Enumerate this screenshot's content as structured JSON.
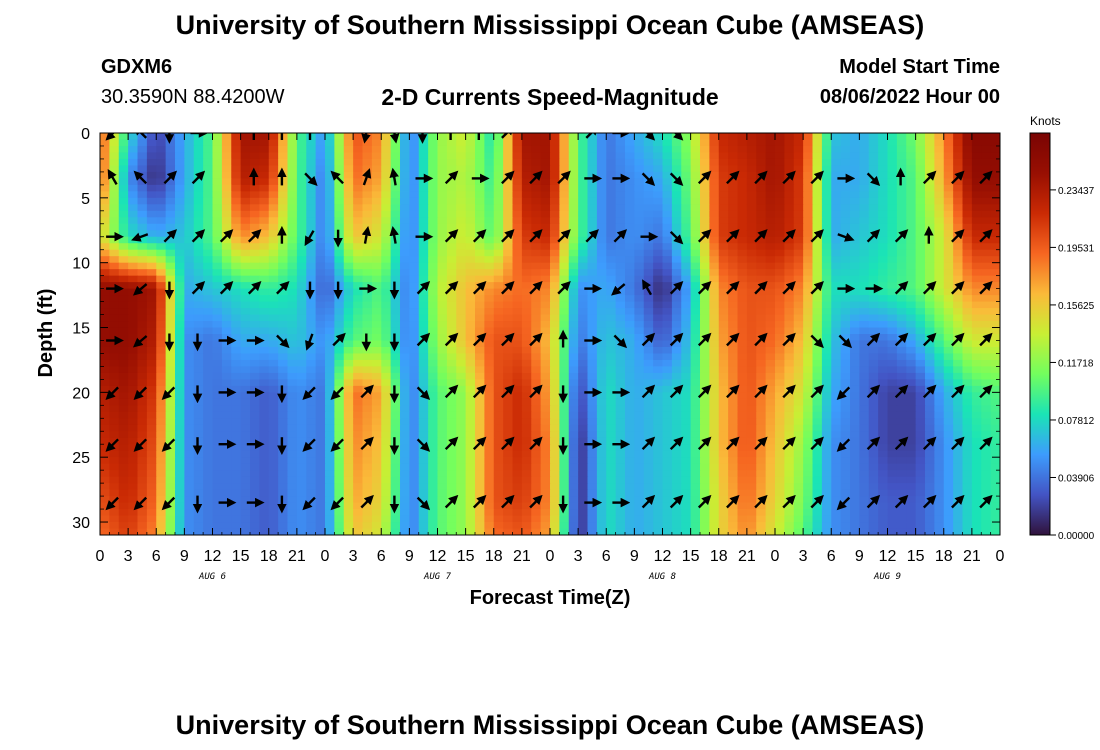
{
  "page": {
    "title_top": "University of Southern Mississippi Ocean Cube (AMSEAS)",
    "title_bottom": "University of Southern Mississippi Ocean Cube (AMSEAS)",
    "station_id": "GDXM6",
    "station_coords": "30.3590N  88.4200W",
    "plot_title": "2-D Currents Speed-Magnitude",
    "model_start_label": "Model Start Time",
    "model_start_value": "08/06/2022 Hour 00"
  },
  "chart_data": {
    "type": "heatmap",
    "title": "2-D Currents Speed-Magnitude",
    "xlabel": "Forecast Time(Z)",
    "ylabel": "Depth (ft)",
    "x_range_hours": [
      0,
      96
    ],
    "ylim": [
      0,
      31
    ],
    "y_ticks": [
      0,
      5,
      10,
      15,
      20,
      25,
      30
    ],
    "x_tick_labels": [
      "0",
      "3",
      "6",
      "9",
      "12",
      "15",
      "18",
      "21",
      "0",
      "3",
      "6",
      "9",
      "12",
      "15",
      "18",
      "21",
      "0",
      "3",
      "6",
      "9",
      "12",
      "15",
      "18",
      "21",
      "0",
      "3",
      "6",
      "9",
      "12",
      "15",
      "18",
      "21",
      "0"
    ],
    "day_labels": [
      {
        "text": "AUG 6",
        "hour": 12
      },
      {
        "text": "AUG 7",
        "hour": 36
      },
      {
        "text": "AUG 8",
        "hour": 60
      },
      {
        "text": "AUG 9",
        "hour": 84
      }
    ],
    "colorbar": {
      "unit_label": "Knots",
      "range": [
        0.0,
        0.273
      ],
      "tick_labels": [
        "0.23437",
        "0.19531",
        "0.15625",
        "0.11718",
        "0.07812",
        "0.03906",
        "0.00000"
      ],
      "tick_values": [
        0.23437,
        0.19531,
        0.15625,
        0.11718,
        0.07812,
        0.03906,
        0.0
      ]
    },
    "speed_knots_approx": {
      "columns_hours": [
        0,
        3,
        6,
        9,
        12,
        15,
        18,
        21,
        24,
        27,
        30,
        33,
        36,
        39,
        42,
        45,
        48,
        51,
        54,
        57,
        60,
        63,
        66,
        69,
        72,
        75,
        78,
        81,
        84,
        87,
        90,
        93,
        96
      ],
      "depths_ft": [
        0,
        3.5,
        8,
        12,
        16,
        20,
        24,
        28.5,
        31
      ],
      "rows": [
        [
          0.2,
          0.08,
          0.02,
          0.06,
          0.1,
          0.24,
          0.24,
          0.1,
          0.05,
          0.2,
          0.18,
          0.04,
          0.12,
          0.14,
          0.08,
          0.24,
          0.24,
          0.1,
          0.04,
          0.06,
          0.08,
          0.12,
          0.22,
          0.23,
          0.24,
          0.22,
          0.07,
          0.06,
          0.08,
          0.11,
          0.18,
          0.26,
          0.26
        ],
        [
          0.2,
          0.05,
          0.01,
          0.06,
          0.1,
          0.23,
          0.22,
          0.1,
          0.04,
          0.19,
          0.17,
          0.04,
          0.12,
          0.13,
          0.09,
          0.23,
          0.24,
          0.1,
          0.04,
          0.05,
          0.06,
          0.11,
          0.21,
          0.22,
          0.24,
          0.21,
          0.06,
          0.06,
          0.08,
          0.1,
          0.17,
          0.25,
          0.25
        ],
        [
          0.15,
          0.08,
          0.06,
          0.07,
          0.1,
          0.18,
          0.16,
          0.1,
          0.04,
          0.16,
          0.14,
          0.04,
          0.12,
          0.14,
          0.1,
          0.21,
          0.22,
          0.1,
          0.04,
          0.05,
          0.04,
          0.1,
          0.21,
          0.22,
          0.23,
          0.21,
          0.06,
          0.07,
          0.08,
          0.1,
          0.14,
          0.22,
          0.22
        ],
        [
          0.25,
          0.25,
          0.24,
          0.06,
          0.07,
          0.08,
          0.09,
          0.08,
          0.03,
          0.08,
          0.1,
          0.04,
          0.13,
          0.16,
          0.18,
          0.19,
          0.18,
          0.05,
          0.06,
          0.04,
          0.01,
          0.06,
          0.18,
          0.2,
          0.2,
          0.18,
          0.08,
          0.08,
          0.09,
          0.1,
          0.14,
          0.18,
          0.18
        ],
        [
          0.25,
          0.25,
          0.23,
          0.05,
          0.04,
          0.06,
          0.06,
          0.07,
          0.05,
          0.1,
          0.11,
          0.04,
          0.12,
          0.16,
          0.2,
          0.2,
          0.16,
          0.04,
          0.07,
          0.06,
          0.03,
          0.07,
          0.17,
          0.2,
          0.19,
          0.16,
          0.07,
          0.04,
          0.04,
          0.06,
          0.1,
          0.14,
          0.14
        ],
        [
          0.23,
          0.24,
          0.21,
          0.05,
          0.04,
          0.04,
          0.03,
          0.05,
          0.04,
          0.19,
          0.17,
          0.04,
          0.1,
          0.12,
          0.2,
          0.22,
          0.17,
          0.02,
          0.08,
          0.06,
          0.07,
          0.08,
          0.16,
          0.2,
          0.17,
          0.14,
          0.06,
          0.04,
          0.02,
          0.02,
          0.06,
          0.09,
          0.1
        ],
        [
          0.22,
          0.23,
          0.2,
          0.05,
          0.04,
          0.04,
          0.03,
          0.05,
          0.04,
          0.18,
          0.16,
          0.04,
          0.1,
          0.12,
          0.2,
          0.22,
          0.18,
          0.01,
          0.08,
          0.06,
          0.07,
          0.08,
          0.16,
          0.2,
          0.16,
          0.12,
          0.05,
          0.04,
          0.02,
          0.02,
          0.05,
          0.08,
          0.09
        ],
        [
          0.2,
          0.22,
          0.19,
          0.05,
          0.04,
          0.04,
          0.03,
          0.05,
          0.04,
          0.17,
          0.15,
          0.04,
          0.1,
          0.12,
          0.2,
          0.21,
          0.18,
          0.01,
          0.08,
          0.06,
          0.07,
          0.08,
          0.15,
          0.19,
          0.15,
          0.11,
          0.05,
          0.04,
          0.03,
          0.03,
          0.05,
          0.08,
          0.09
        ],
        [
          0.19,
          0.21,
          0.18,
          0.05,
          0.04,
          0.04,
          0.03,
          0.05,
          0.04,
          0.16,
          0.14,
          0.04,
          0.1,
          0.12,
          0.19,
          0.2,
          0.17,
          0.01,
          0.08,
          0.06,
          0.07,
          0.08,
          0.15,
          0.18,
          0.14,
          0.1,
          0.05,
          0.04,
          0.03,
          0.03,
          0.05,
          0.08,
          0.09
        ]
      ]
    },
    "vectors": {
      "columns_hours": [
        3,
        6,
        9,
        12,
        15,
        18,
        21,
        24,
        27,
        30,
        33,
        36,
        39,
        42,
        45,
        48,
        51,
        54,
        57,
        60,
        63,
        66,
        69,
        72,
        75,
        78,
        81,
        84,
        87,
        90,
        93,
        96
      ],
      "depths_ft": [
        0,
        3.5,
        8,
        12,
        16,
        20,
        24,
        28.5
      ],
      "direction_deg_rows": [
        [
          225,
          315,
          180,
          90,
          null,
          0,
          0,
          0,
          null,
          190,
          170,
          180,
          0,
          0,
          45,
          null,
          null,
          45,
          90,
          135,
          135,
          null,
          null,
          null,
          null,
          null,
          null,
          null,
          null,
          null,
          null,
          null
        ],
        [
          330,
          315,
          45,
          45,
          null,
          0,
          0,
          135,
          315,
          20,
          350,
          90,
          45,
          90,
          45,
          45,
          45,
          90,
          90,
          135,
          135,
          45,
          45,
          45,
          45,
          45,
          90,
          135,
          0,
          45,
          45,
          45
        ],
        [
          90,
          250,
          45,
          45,
          45,
          45,
          0,
          210,
          180,
          10,
          350,
          90,
          45,
          45,
          45,
          45,
          45,
          45,
          45,
          90,
          135,
          45,
          45,
          45,
          45,
          45,
          110,
          45,
          45,
          0,
          45,
          45
        ],
        [
          90,
          230,
          180,
          45,
          45,
          45,
          45,
          180,
          180,
          90,
          180,
          45,
          45,
          45,
          45,
          45,
          45,
          90,
          230,
          330,
          45,
          45,
          45,
          45,
          45,
          45,
          90,
          90,
          45,
          45,
          45,
          45
        ],
        [
          90,
          230,
          180,
          180,
          90,
          90,
          135,
          200,
          45,
          180,
          180,
          45,
          45,
          45,
          45,
          45,
          0,
          90,
          135,
          45,
          45,
          45,
          45,
          45,
          45,
          135,
          135,
          45,
          45,
          45,
          45,
          45
        ],
        [
          225,
          225,
          225,
          180,
          90,
          90,
          180,
          225,
          225,
          45,
          180,
          135,
          45,
          45,
          45,
          45,
          180,
          90,
          90,
          45,
          45,
          45,
          45,
          45,
          45,
          45,
          225,
          45,
          45,
          45,
          45,
          45
        ],
        [
          225,
          225,
          225,
          180,
          90,
          90,
          180,
          225,
          225,
          45,
          180,
          135,
          45,
          45,
          45,
          45,
          180,
          90,
          90,
          45,
          45,
          45,
          45,
          45,
          45,
          45,
          225,
          45,
          45,
          45,
          45,
          45
        ],
        [
          225,
          225,
          225,
          180,
          90,
          90,
          180,
          225,
          225,
          45,
          180,
          135,
          45,
          45,
          45,
          45,
          180,
          90,
          90,
          45,
          45,
          45,
          45,
          45,
          45,
          45,
          225,
          45,
          45,
          45,
          45,
          45
        ]
      ]
    }
  }
}
